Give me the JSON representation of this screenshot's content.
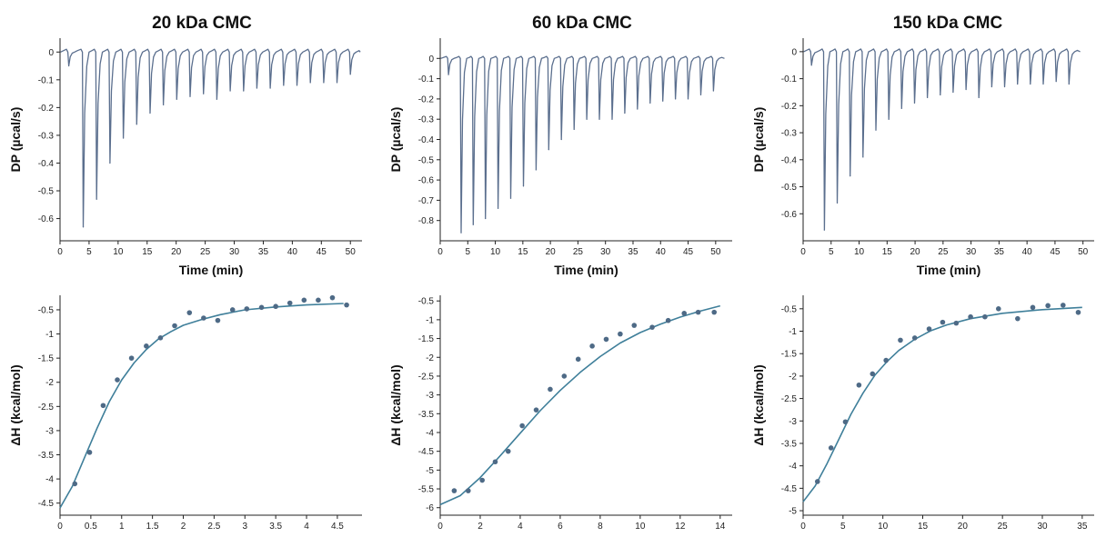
{
  "colors": {
    "trace": "#5b6f8e",
    "fit": "#3f7f9a",
    "point": "#4e6a86",
    "axis": "#222222"
  },
  "columns": [
    {
      "title": "20 kDa CMC"
    },
    {
      "title": "60 kDa CMC"
    },
    {
      "title": "150 kDa CMC"
    }
  ],
  "chart_data": [
    {
      "type": "line",
      "panel": "20 kDa CMC thermogram",
      "xlabel": "Time (min)",
      "ylabel": "DP (µcal/s)",
      "xlim": [
        0,
        52
      ],
      "ylim": [
        -0.68,
        0.05
      ],
      "xticks": [
        0,
        5,
        10,
        15,
        20,
        25,
        30,
        35,
        40,
        45,
        50
      ],
      "yticks": [
        0,
        -0.1,
        -0.2,
        -0.3,
        -0.4,
        -0.5,
        -0.6
      ],
      "injection_times": [
        1.5,
        4,
        6.3,
        8.6,
        10.9,
        13.2,
        15.5,
        17.8,
        20.1,
        22.4,
        24.7,
        27,
        29.3,
        31.6,
        33.9,
        36.2,
        38.5,
        40.8,
        43.1,
        45.4,
        47.7,
        50
      ],
      "peak_values": [
        -0.05,
        -0.63,
        -0.53,
        -0.4,
        -0.31,
        -0.26,
        -0.22,
        -0.19,
        -0.17,
        -0.16,
        -0.15,
        -0.17,
        -0.14,
        -0.14,
        -0.13,
        -0.13,
        -0.12,
        -0.12,
        -0.11,
        -0.11,
        -0.11,
        -0.08
      ]
    },
    {
      "type": "line",
      "panel": "60 kDa CMC thermogram",
      "xlabel": "Time (min)",
      "ylabel": "DP (µcal/s)",
      "xlim": [
        0,
        53
      ],
      "ylim": [
        -0.9,
        0.1
      ],
      "xticks": [
        0,
        5,
        10,
        15,
        20,
        25,
        30,
        35,
        40,
        45,
        50
      ],
      "yticks": [
        0,
        -0.1,
        -0.2,
        -0.3,
        -0.4,
        -0.5,
        -0.6,
        -0.7,
        -0.8
      ],
      "injection_times": [
        1.5,
        3.8,
        6,
        8.2,
        10.5,
        12.8,
        15.1,
        17.4,
        19.7,
        22,
        24.3,
        26.6,
        28.9,
        31.2,
        33.5,
        35.8,
        38.1,
        40.4,
        42.7,
        45,
        47.3,
        49.6
      ],
      "peak_values": [
        -0.08,
        -0.86,
        -0.82,
        -0.79,
        -0.74,
        -0.69,
        -0.63,
        -0.55,
        -0.45,
        -0.4,
        -0.35,
        -0.3,
        -0.3,
        -0.3,
        -0.27,
        -0.25,
        -0.22,
        -0.21,
        -0.2,
        -0.2,
        -0.18,
        -0.16
      ]
    },
    {
      "type": "line",
      "panel": "150 kDa CMC thermogram",
      "xlabel": "Time (min)",
      "ylabel": "DP (µcal/s)",
      "xlim": [
        0,
        52
      ],
      "ylim": [
        -0.7,
        0.05
      ],
      "xticks": [
        0,
        5,
        10,
        15,
        20,
        25,
        30,
        35,
        40,
        45,
        50
      ],
      "yticks": [
        0,
        -0.1,
        -0.2,
        -0.3,
        -0.4,
        -0.5,
        -0.6
      ],
      "injection_times": [
        1.5,
        3.8,
        6.1,
        8.4,
        10.7,
        13,
        15.3,
        17.6,
        19.9,
        22.2,
        24.5,
        26.8,
        29.1,
        31.4,
        33.7,
        36,
        38.3,
        40.6,
        42.9,
        45.2,
        47.5
      ],
      "peak_values": [
        -0.05,
        -0.66,
        -0.56,
        -0.46,
        -0.39,
        -0.29,
        -0.25,
        -0.21,
        -0.19,
        -0.17,
        -0.16,
        -0.15,
        -0.14,
        -0.17,
        -0.13,
        -0.13,
        -0.12,
        -0.12,
        -0.12,
        -0.11,
        -0.12
      ]
    },
    {
      "type": "scatter",
      "panel": "20 kDa CMC binding isotherm",
      "xlabel": "Molar Ratio",
      "ylabel": "ΔH (kcal/mol)",
      "xlim": [
        0,
        4.9
      ],
      "ylim": [
        -4.75,
        -0.2
      ],
      "xticks": [
        0,
        0.5,
        1,
        1.5,
        2,
        2.5,
        3,
        3.5,
        4,
        4.5
      ],
      "xtick_labels": [
        "0",
        "0.5",
        "1",
        "1.5",
        "2",
        "2.5",
        "3",
        "3.5",
        "4",
        "4.5"
      ],
      "yticks": [
        -0.5,
        -1,
        -1.5,
        -2,
        -2.5,
        -3,
        -3.5,
        -4,
        -4.5
      ],
      "points": {
        "x": [
          0.24,
          0.48,
          0.7,
          0.93,
          1.16,
          1.4,
          1.63,
          1.86,
          2.1,
          2.33,
          2.56,
          2.8,
          3.03,
          3.27,
          3.5,
          3.73,
          3.96,
          4.19,
          4.42,
          4.65
        ],
        "y": [
          -4.1,
          -3.45,
          -2.48,
          -1.95,
          -1.5,
          -1.25,
          -1.08,
          -0.83,
          -0.56,
          -0.67,
          -0.72,
          -0.5,
          -0.48,
          -0.45,
          -0.43,
          -0.36,
          -0.3,
          -0.3,
          -0.25,
          -0.4
        ]
      },
      "fit": {
        "x": [
          0,
          0.2,
          0.4,
          0.6,
          0.8,
          1,
          1.2,
          1.4,
          1.6,
          1.8,
          2,
          2.3,
          2.6,
          3,
          3.5,
          4,
          4.6
        ],
        "y": [
          -4.6,
          -4.15,
          -3.55,
          -2.95,
          -2.4,
          -1.95,
          -1.6,
          -1.32,
          -1.1,
          -0.95,
          -0.82,
          -0.7,
          -0.6,
          -0.5,
          -0.44,
          -0.4,
          -0.37
        ]
      }
    },
    {
      "type": "scatter",
      "panel": "60 kDa CMC binding isotherm",
      "xlabel": "Molar Ratio",
      "ylabel": "ΔH (kcal/mol)",
      "xlim": [
        0,
        14.6
      ],
      "ylim": [
        -6.2,
        -0.35
      ],
      "xticks": [
        0,
        2,
        4,
        6,
        8,
        10,
        12,
        14
      ],
      "xtick_labels": [
        "0",
        "2",
        "4",
        "6",
        "8",
        "10",
        "12",
        "14"
      ],
      "yticks": [
        -0.5,
        -1,
        -1.5,
        -2,
        -2.5,
        -3,
        -3.5,
        -4,
        -4.5,
        -5,
        -5.5,
        -6
      ],
      "points": {
        "x": [
          0.7,
          1.4,
          2.1,
          2.75,
          3.4,
          4.1,
          4.8,
          5.5,
          6.2,
          6.9,
          7.6,
          8.3,
          9,
          9.7,
          10.6,
          11.4,
          12.2,
          12.9,
          13.7
        ],
        "y": [
          -5.55,
          -5.55,
          -5.27,
          -4.78,
          -4.5,
          -3.82,
          -3.4,
          -2.85,
          -2.5,
          -2.05,
          -1.7,
          -1.52,
          -1.38,
          -1.15,
          -1.2,
          -1.02,
          -0.83,
          -0.8,
          -0.8
        ]
      },
      "fit": {
        "x": [
          0,
          1,
          2,
          3,
          4,
          5,
          6,
          7,
          8,
          9,
          10,
          11,
          12,
          13,
          14
        ],
        "y": [
          -5.92,
          -5.68,
          -5.2,
          -4.62,
          -4.02,
          -3.42,
          -2.88,
          -2.4,
          -1.98,
          -1.62,
          -1.34,
          -1.12,
          -0.93,
          -0.77,
          -0.63
        ]
      }
    },
    {
      "type": "scatter",
      "panel": "150 kDa CMC binding isotherm",
      "xlabel": "Molar Ratio",
      "ylabel": "ΔH (kcal/mol)",
      "xlim": [
        0,
        36.5
      ],
      "ylim": [
        -5.1,
        -0.2
      ],
      "xticks": [
        0,
        5,
        10,
        15,
        20,
        25,
        30,
        35
      ],
      "xtick_labels": [
        "0",
        "5",
        "10",
        "15",
        "20",
        "25",
        "30",
        "35"
      ],
      "yticks": [
        -0.5,
        -1,
        -1.5,
        -2,
        -2.5,
        -3,
        -3.5,
        -4,
        -4.5,
        -5
      ],
      "points": {
        "x": [
          1.8,
          3.5,
          5.3,
          7,
          8.7,
          10.4,
          12.2,
          14,
          15.8,
          17.5,
          19.2,
          21,
          22.8,
          24.5,
          26.9,
          28.8,
          30.7,
          32.6,
          34.5
        ],
        "y": [
          -4.35,
          -3.6,
          -3.02,
          -2.2,
          -1.95,
          -1.65,
          -1.2,
          -1.15,
          -0.95,
          -0.8,
          -0.82,
          -0.68,
          -0.68,
          -0.5,
          -0.72,
          -0.47,
          -0.43,
          -0.42,
          -0.58
        ]
      },
      "fit": {
        "x": [
          0,
          1.5,
          3,
          4.5,
          6,
          7.5,
          9,
          10.5,
          12,
          14,
          16,
          18,
          21,
          25,
          30,
          35
        ],
        "y": [
          -4.8,
          -4.45,
          -3.95,
          -3.4,
          -2.85,
          -2.38,
          -1.98,
          -1.68,
          -1.43,
          -1.18,
          -0.99,
          -0.86,
          -0.72,
          -0.6,
          -0.52,
          -0.47
        ]
      }
    }
  ]
}
